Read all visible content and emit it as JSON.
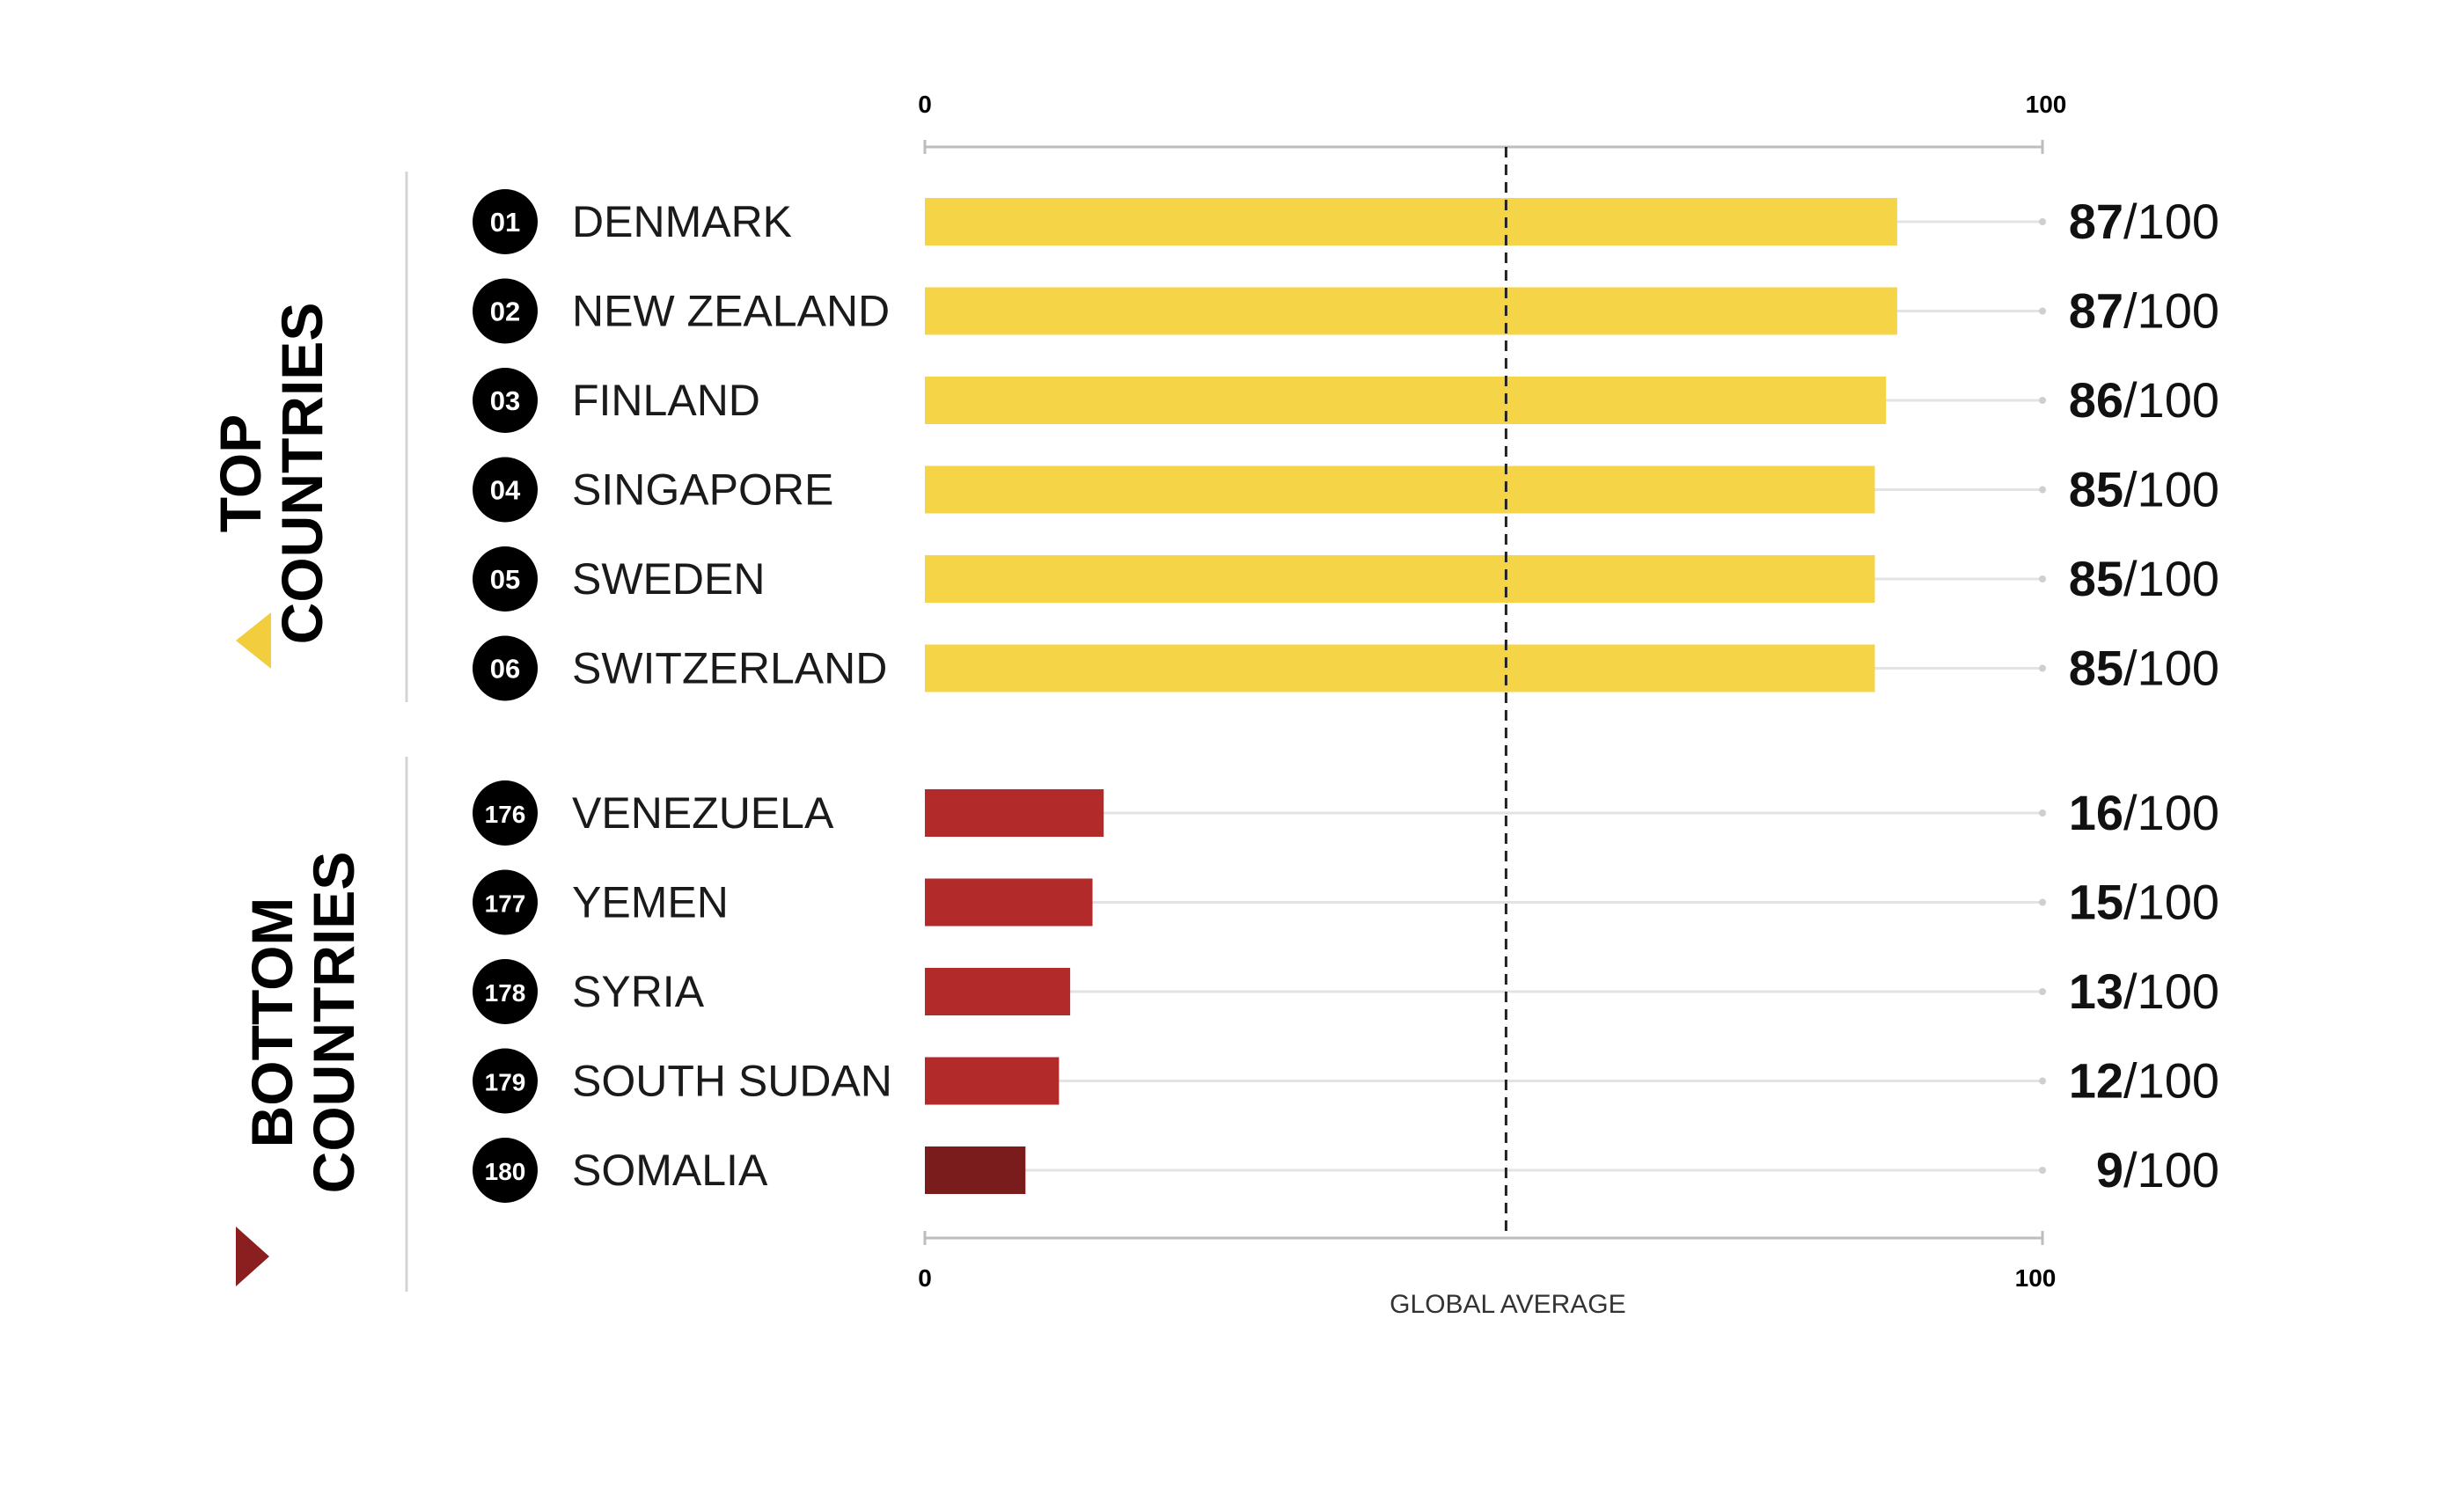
{
  "chart_data": {
    "type": "bar",
    "orientation": "horizontal",
    "xlim": [
      0,
      100
    ],
    "tick_labels": {
      "top": [
        "0",
        "100"
      ],
      "bottom": [
        "0",
        "100"
      ]
    },
    "reference_line": {
      "label": "GLOBAL AVERAGE",
      "value": 52
    },
    "score_suffix": "/100",
    "groups": [
      {
        "name": "top",
        "label_lines": [
          "TOP",
          "COUNTRIES"
        ],
        "marker_color": "#f2cd3d",
        "bars": [
          {
            "rank": "01",
            "country": "DENMARK",
            "value": 87,
            "color": "#f5d547"
          },
          {
            "rank": "02",
            "country": "NEW ZEALAND",
            "value": 87,
            "color": "#f5d547"
          },
          {
            "rank": "03",
            "country": "FINLAND",
            "value": 86,
            "color": "#f5d547"
          },
          {
            "rank": "04",
            "country": "SINGAPORE",
            "value": 85,
            "color": "#f5d547"
          },
          {
            "rank": "05",
            "country": "SWEDEN",
            "value": 85,
            "color": "#f5d547"
          },
          {
            "rank": "06",
            "country": "SWITZERLAND",
            "value": 85,
            "color": "#f5d547"
          }
        ]
      },
      {
        "name": "bottom",
        "label_lines": [
          "BOTTOM",
          "COUNTRIES"
        ],
        "marker_color": "#8b1f1f",
        "bars": [
          {
            "rank": "176",
            "country": "VENEZUELA",
            "value": 16,
            "color": "#b22a2a"
          },
          {
            "rank": "177",
            "country": "YEMEN",
            "value": 15,
            "color": "#b22a2a"
          },
          {
            "rank": "178",
            "country": "SYRIA",
            "value": 13,
            "color": "#b22a2a"
          },
          {
            "rank": "179",
            "country": "SOUTH SUDAN",
            "value": 12,
            "color": "#b22a2a"
          },
          {
            "rank": "180",
            "country": "SOMALIA",
            "value": 9,
            "color": "#7a1c1c"
          }
        ]
      }
    ]
  }
}
